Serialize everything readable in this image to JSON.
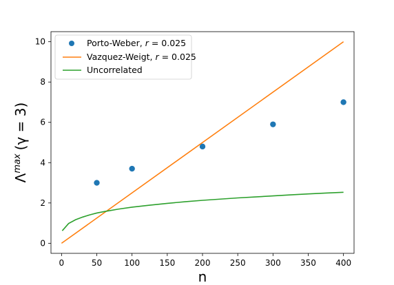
{
  "chart_data": {
    "type": "line",
    "xlabel": "n",
    "ylabel_main": "Λ",
    "ylabel_sup": "max",
    "ylabel_paren": "(γ = 3)",
    "xlim": [
      -15,
      415
    ],
    "ylim": [
      -0.5,
      10.5
    ],
    "xticks": [
      0,
      50,
      100,
      150,
      200,
      250,
      300,
      350,
      400
    ],
    "yticks": [
      0,
      2,
      4,
      6,
      8,
      10
    ],
    "grid": false,
    "legend_position": "upper-left",
    "series": [
      {
        "name_main": "Porto-Weber, ",
        "name_italic": "r",
        "name_tail": " = 0.025",
        "kind": "scatter",
        "color": "#1f77b4",
        "x": [
          50,
          100,
          200,
          300,
          400
        ],
        "y": [
          3.0,
          3.7,
          4.8,
          5.9,
          7.0
        ]
      },
      {
        "name_main": "Vazquez-Weigt, ",
        "name_italic": "r",
        "name_tail": " = 0.025",
        "kind": "line",
        "color": "#ff7f0e",
        "x": [
          0,
          400
        ],
        "y": [
          0.0,
          10.0
        ]
      },
      {
        "name_main": "Uncorrelated",
        "name_italic": "",
        "name_tail": "",
        "kind": "line",
        "color": "#2ca02c",
        "x": [
          1,
          10,
          20,
          30,
          40,
          50,
          60,
          70,
          80,
          100,
          125,
          150,
          175,
          200,
          225,
          250,
          275,
          300,
          325,
          350,
          375,
          400
        ],
        "y": [
          0.62,
          0.98,
          1.17,
          1.3,
          1.41,
          1.5,
          1.57,
          1.63,
          1.69,
          1.79,
          1.89,
          1.98,
          2.06,
          2.13,
          2.19,
          2.25,
          2.3,
          2.35,
          2.4,
          2.45,
          2.49,
          2.53
        ]
      }
    ]
  }
}
